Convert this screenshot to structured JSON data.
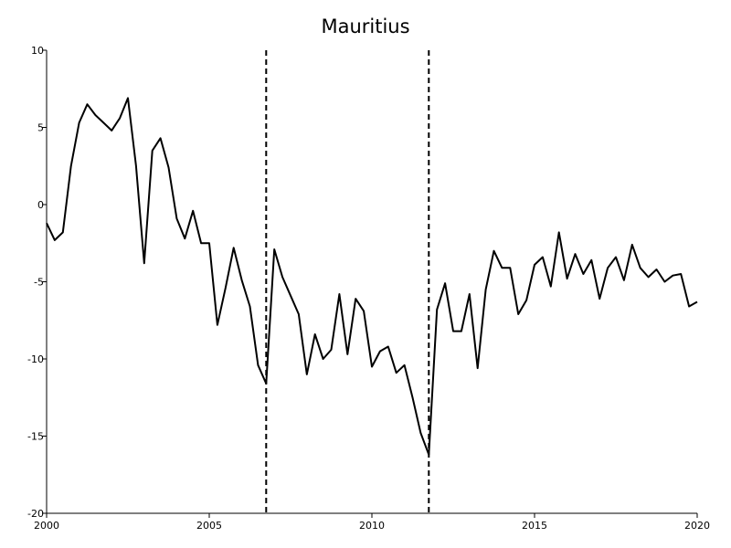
{
  "chart_data": {
    "type": "line",
    "title": "Mauritius",
    "xlabel": "",
    "ylabel": "",
    "xlim": [
      2000,
      2020
    ],
    "ylim": [
      -20,
      10
    ],
    "x_ticks": [
      2000,
      2005,
      2010,
      2015,
      2020
    ],
    "y_ticks": [
      -20,
      -15,
      -10,
      -5,
      0,
      5,
      10
    ],
    "grid": false,
    "vertical_lines": [
      {
        "x": 2006.75,
        "style": "dashed"
      },
      {
        "x": 2011.75,
        "style": "dashed"
      }
    ],
    "series": [
      {
        "x": [
          2000.0,
          2000.25,
          2000.5,
          2000.75,
          2001.0,
          2001.25,
          2001.5,
          2001.75,
          2002.0,
          2002.25,
          2002.5,
          2002.75,
          2003.0,
          2003.25,
          2003.5,
          2003.75,
          2004.0,
          2004.25,
          2004.5,
          2004.75,
          2005.0,
          2005.25,
          2005.5,
          2005.75,
          2006.0,
          2006.25,
          2006.5,
          2006.75,
          2007.0,
          2007.25,
          2007.5,
          2007.75,
          2008.0,
          2008.25,
          2008.5,
          2008.75,
          2009.0,
          2009.25,
          2009.5,
          2009.75,
          2010.0,
          2010.25,
          2010.5,
          2010.75,
          2011.0,
          2011.25,
          2011.5,
          2011.75,
          2012.0,
          2012.25,
          2012.5,
          2012.75,
          2013.0,
          2013.25,
          2013.5,
          2013.75,
          2014.0,
          2014.25,
          2014.5,
          2014.75,
          2015.0,
          2015.25,
          2015.5,
          2015.75,
          2016.0,
          2016.25,
          2016.5,
          2016.75,
          2017.0,
          2017.25,
          2017.5,
          2017.75,
          2018.0,
          2018.25,
          2018.5,
          2018.75,
          2019.0,
          2019.25,
          2019.5,
          2019.75,
          2020.0
        ],
        "values": [
          -1.2,
          -2.3,
          -1.8,
          2.5,
          5.3,
          6.5,
          5.8,
          5.3,
          4.8,
          5.6,
          6.9,
          2.5,
          -3.8,
          3.5,
          4.3,
          2.4,
          -0.9,
          -2.2,
          -0.4,
          -2.5,
          -2.5,
          -7.8,
          -5.4,
          -2.8,
          -4.9,
          -6.6,
          -10.4,
          -11.6,
          -2.9,
          -4.7,
          -5.9,
          -7.1,
          -11.0,
          -8.4,
          -10.0,
          -9.4,
          -5.8,
          -9.7,
          -6.1,
          -6.9,
          -10.5,
          -9.5,
          -9.2,
          -10.9,
          -10.4,
          -12.5,
          -14.8,
          -16.2,
          -6.8,
          -5.1,
          -8.2,
          -8.2,
          -5.8,
          -10.6,
          -5.5,
          -3.0,
          -4.1,
          -4.1,
          -7.1,
          -6.2,
          -3.9,
          -3.4,
          -5.3,
          -1.8,
          -4.8,
          -3.2,
          -4.5,
          -3.6,
          -6.1,
          -4.1,
          -3.4,
          -4.9,
          -2.6,
          -4.1,
          -4.7,
          -4.2,
          -5.0,
          -4.6,
          -4.5,
          -6.6,
          -6.3
        ]
      }
    ]
  }
}
